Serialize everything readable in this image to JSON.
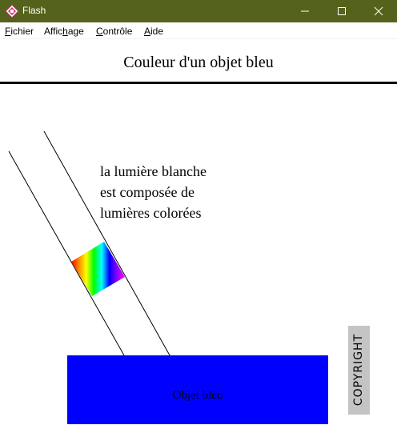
{
  "window": {
    "title": "Flash",
    "controls": [
      "minimize-icon",
      "maximize-icon",
      "close-icon"
    ]
  },
  "menu": {
    "items": [
      {
        "label": "Fichier",
        "mnemonic": "F"
      },
      {
        "label": "Affichage",
        "mnemonic": "h"
      },
      {
        "label": "Contrôle",
        "mnemonic": "C"
      },
      {
        "label": "Aide",
        "mnemonic": "A"
      }
    ]
  },
  "content": {
    "heading": "Couleur d'un objet bleu",
    "caption_lines": [
      "la lumière blanche",
      "est composée de",
      "lumières colorées"
    ],
    "object_label": "Objet bleu",
    "watermark": "COPYRIGHT"
  },
  "colors": {
    "titlebar": "#55621b",
    "object": "#0000ff",
    "watermark_bg": "#c4c4c4",
    "spectrum": [
      "#ff0000",
      "#ff8800",
      "#ffff00",
      "#00ff00",
      "#00ffff",
      "#0000ff",
      "#8800ff",
      "#ff00ff"
    ]
  }
}
